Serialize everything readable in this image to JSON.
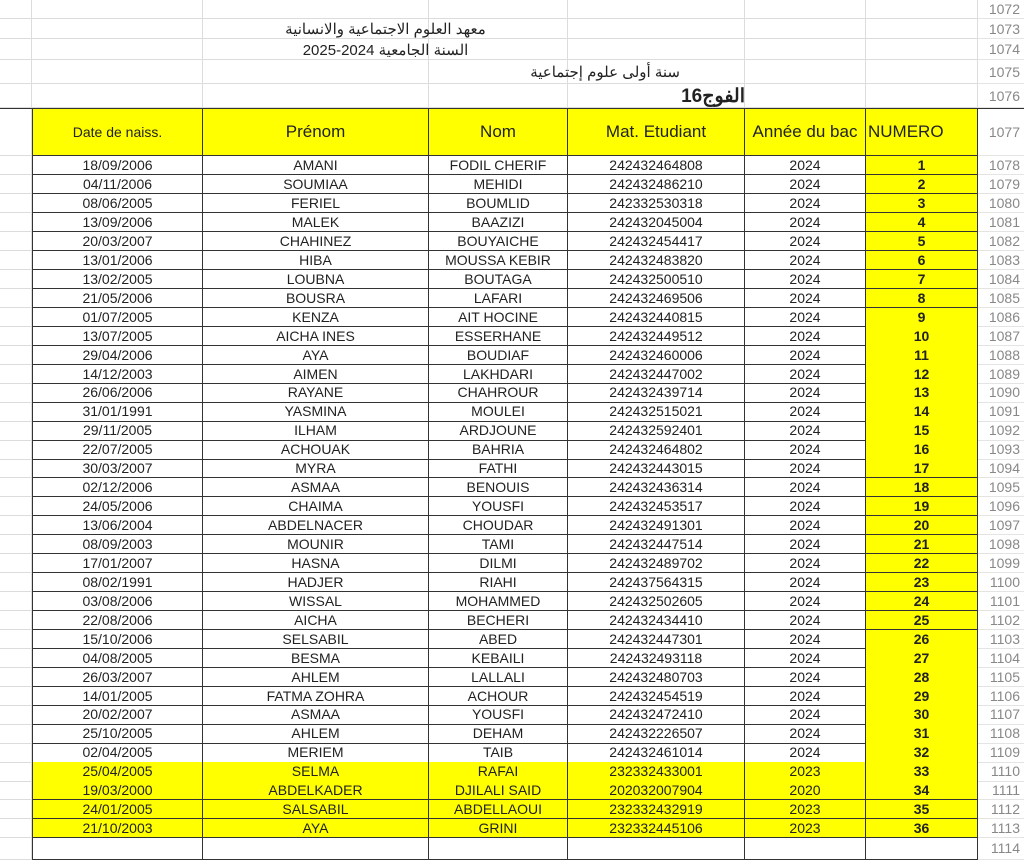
{
  "sheet": {
    "title_rows": [
      {
        "row": "1072",
        "text": ""
      },
      {
        "row": "1073",
        "text": "معهد العلوم الاجتماعية والانسانية"
      },
      {
        "row": "1074",
        "text": "السنة الجامعية 2024-2025"
      },
      {
        "row": "1075",
        "text": "سنة أولى علوم إجتماعية"
      },
      {
        "row": "1076",
        "text": "الفوج16"
      }
    ],
    "header_row": "1077",
    "headers": [
      "Date de naiss.",
      "Prénom",
      "Nom",
      "Mat. Etudiant",
      "Année du bac",
      "NUMERO"
    ],
    "rows": [
      [
        "18/09/2006",
        "AMANI",
        "FODIL CHERIF",
        "242432464808",
        "2024",
        "1",
        "1078"
      ],
      [
        "04/11/2006",
        "SOUMIAA",
        "MEHIDI",
        "242432486210",
        "2024",
        "2",
        "1079"
      ],
      [
        "08/06/2005",
        "FERIEL",
        "BOUMLID",
        "242332530318",
        "2024",
        "3",
        "1080"
      ],
      [
        "13/09/2006",
        "MALEK",
        "BAAZIZI",
        "242432045004",
        "2024",
        "4",
        "1081"
      ],
      [
        "20/03/2007",
        "CHAHINEZ",
        "BOUYAICHE",
        "242432454417",
        "2024",
        "5",
        "1082"
      ],
      [
        "13/01/2006",
        "HIBA",
        "MOUSSA KEBIR",
        "242432483820",
        "2024",
        "6",
        "1083"
      ],
      [
        "13/02/2005",
        "LOUBNA",
        "BOUTAGA",
        "242432500510",
        "2024",
        "7",
        "1084"
      ],
      [
        "21/05/2006",
        "BOUSRA",
        "LAFARI",
        "242432469506",
        "2024",
        "8",
        "1085"
      ],
      [
        "01/07/2005",
        "KENZA",
        "AIT HOCINE",
        "242432440815",
        "2024",
        "9",
        "1086"
      ],
      [
        "13/07/2005",
        "AICHA INES",
        "ESSERHANE",
        "242432449512",
        "2024",
        "10",
        "1087"
      ],
      [
        "29/04/2006",
        "AYA",
        "BOUDIAF",
        "242432460006",
        "2024",
        "11",
        "1088"
      ],
      [
        "14/12/2003",
        "AIMEN",
        "LAKHDARI",
        "242432447002",
        "2024",
        "12",
        "1089"
      ],
      [
        "26/06/2006",
        "RAYANE",
        "CHAHROUR",
        "242432439714",
        "2024",
        "13",
        "1090"
      ],
      [
        "31/01/1991",
        "YASMINA",
        "MOULEI",
        "242432515021",
        "2024",
        "14",
        "1091"
      ],
      [
        "29/11/2005",
        "ILHAM",
        "ARDJOUNE",
        "242432592401",
        "2024",
        "15",
        "1092"
      ],
      [
        "22/07/2005",
        "ACHOUAK",
        "BAHRIA",
        "242432464802",
        "2024",
        "16",
        "1093"
      ],
      [
        "30/03/2007",
        "MYRA",
        "FATHI",
        "242432443015",
        "2024",
        "17",
        "1094"
      ],
      [
        "02/12/2006",
        "ASMAA",
        "BENOUIS",
        "242432436314",
        "2024",
        "18",
        "1095"
      ],
      [
        "24/05/2006",
        "CHAIMA",
        "YOUSFI",
        "242432453517",
        "2024",
        "19",
        "1096"
      ],
      [
        "13/06/2004",
        "ABDELNACER",
        "CHOUDAR",
        "242432491301",
        "2024",
        "20",
        "1097"
      ],
      [
        "08/09/2003",
        "MOUNIR",
        "TAMI",
        "242432447514",
        "2024",
        "21",
        "1098"
      ],
      [
        "17/01/2007",
        "HASNA",
        "DILMI",
        "242432489702",
        "2024",
        "22",
        "1099"
      ],
      [
        "08/02/1991",
        "HADJER",
        "RIAHI",
        "242437564315",
        "2024",
        "23",
        "1100"
      ],
      [
        "03/08/2006",
        "WISSAL",
        "MOHAMMED",
        "242432502605",
        "2024",
        "24",
        "1101"
      ],
      [
        "22/08/2006",
        "AICHA",
        "BECHERI",
        "242432434410",
        "2024",
        "25",
        "1102"
      ],
      [
        "15/10/2006",
        "SELSABIL",
        "ABED",
        "242432447301",
        "2024",
        "26",
        "1103"
      ],
      [
        "04/08/2005",
        "BESMA",
        "KEBAILI",
        "242432493118",
        "2024",
        "27",
        "1104"
      ],
      [
        "26/03/2007",
        "AHLEM",
        "LALLALI",
        "242432480703",
        "2024",
        "28",
        "1105"
      ],
      [
        "14/01/2005",
        "FATMA ZOHRA",
        "ACHOUR",
        "242432454519",
        "2024",
        "29",
        "1106"
      ],
      [
        "20/02/2007",
        "ASMAA",
        "YOUSFI",
        "242432472410",
        "2024",
        "30",
        "1107"
      ],
      [
        "25/10/2005",
        "AHLEM",
        "DEHAM",
        "242432226507",
        "2024",
        "31",
        "1108"
      ],
      [
        "02/04/2005",
        "MERIEM",
        "TAIB",
        "242432461014",
        "2024",
        "32",
        "1109"
      ],
      [
        "25/04/2005",
        "SELMA",
        "RAFAI",
        "232332433001",
        "2023",
        "33",
        "1110"
      ],
      [
        "19/03/2000",
        "ABDELKADER",
        "DJILALI SAID",
        "202032007904",
        "2020",
        "34",
        "1111"
      ],
      [
        "24/01/2005",
        "SALSABIL",
        "ABDELLAOUI",
        "232332432919",
        "2023",
        "35",
        "1112"
      ],
      [
        "21/10/2003",
        "AYA",
        "GRINI",
        "232332445106",
        "2023",
        "36",
        "1113"
      ]
    ],
    "highlighted_rows_from_index": 32,
    "empty_row": "1114",
    "colors": {
      "highlight": "#ffff00",
      "grid": "#dcdcdc",
      "border": "#333333",
      "row_number": "#888888"
    }
  }
}
